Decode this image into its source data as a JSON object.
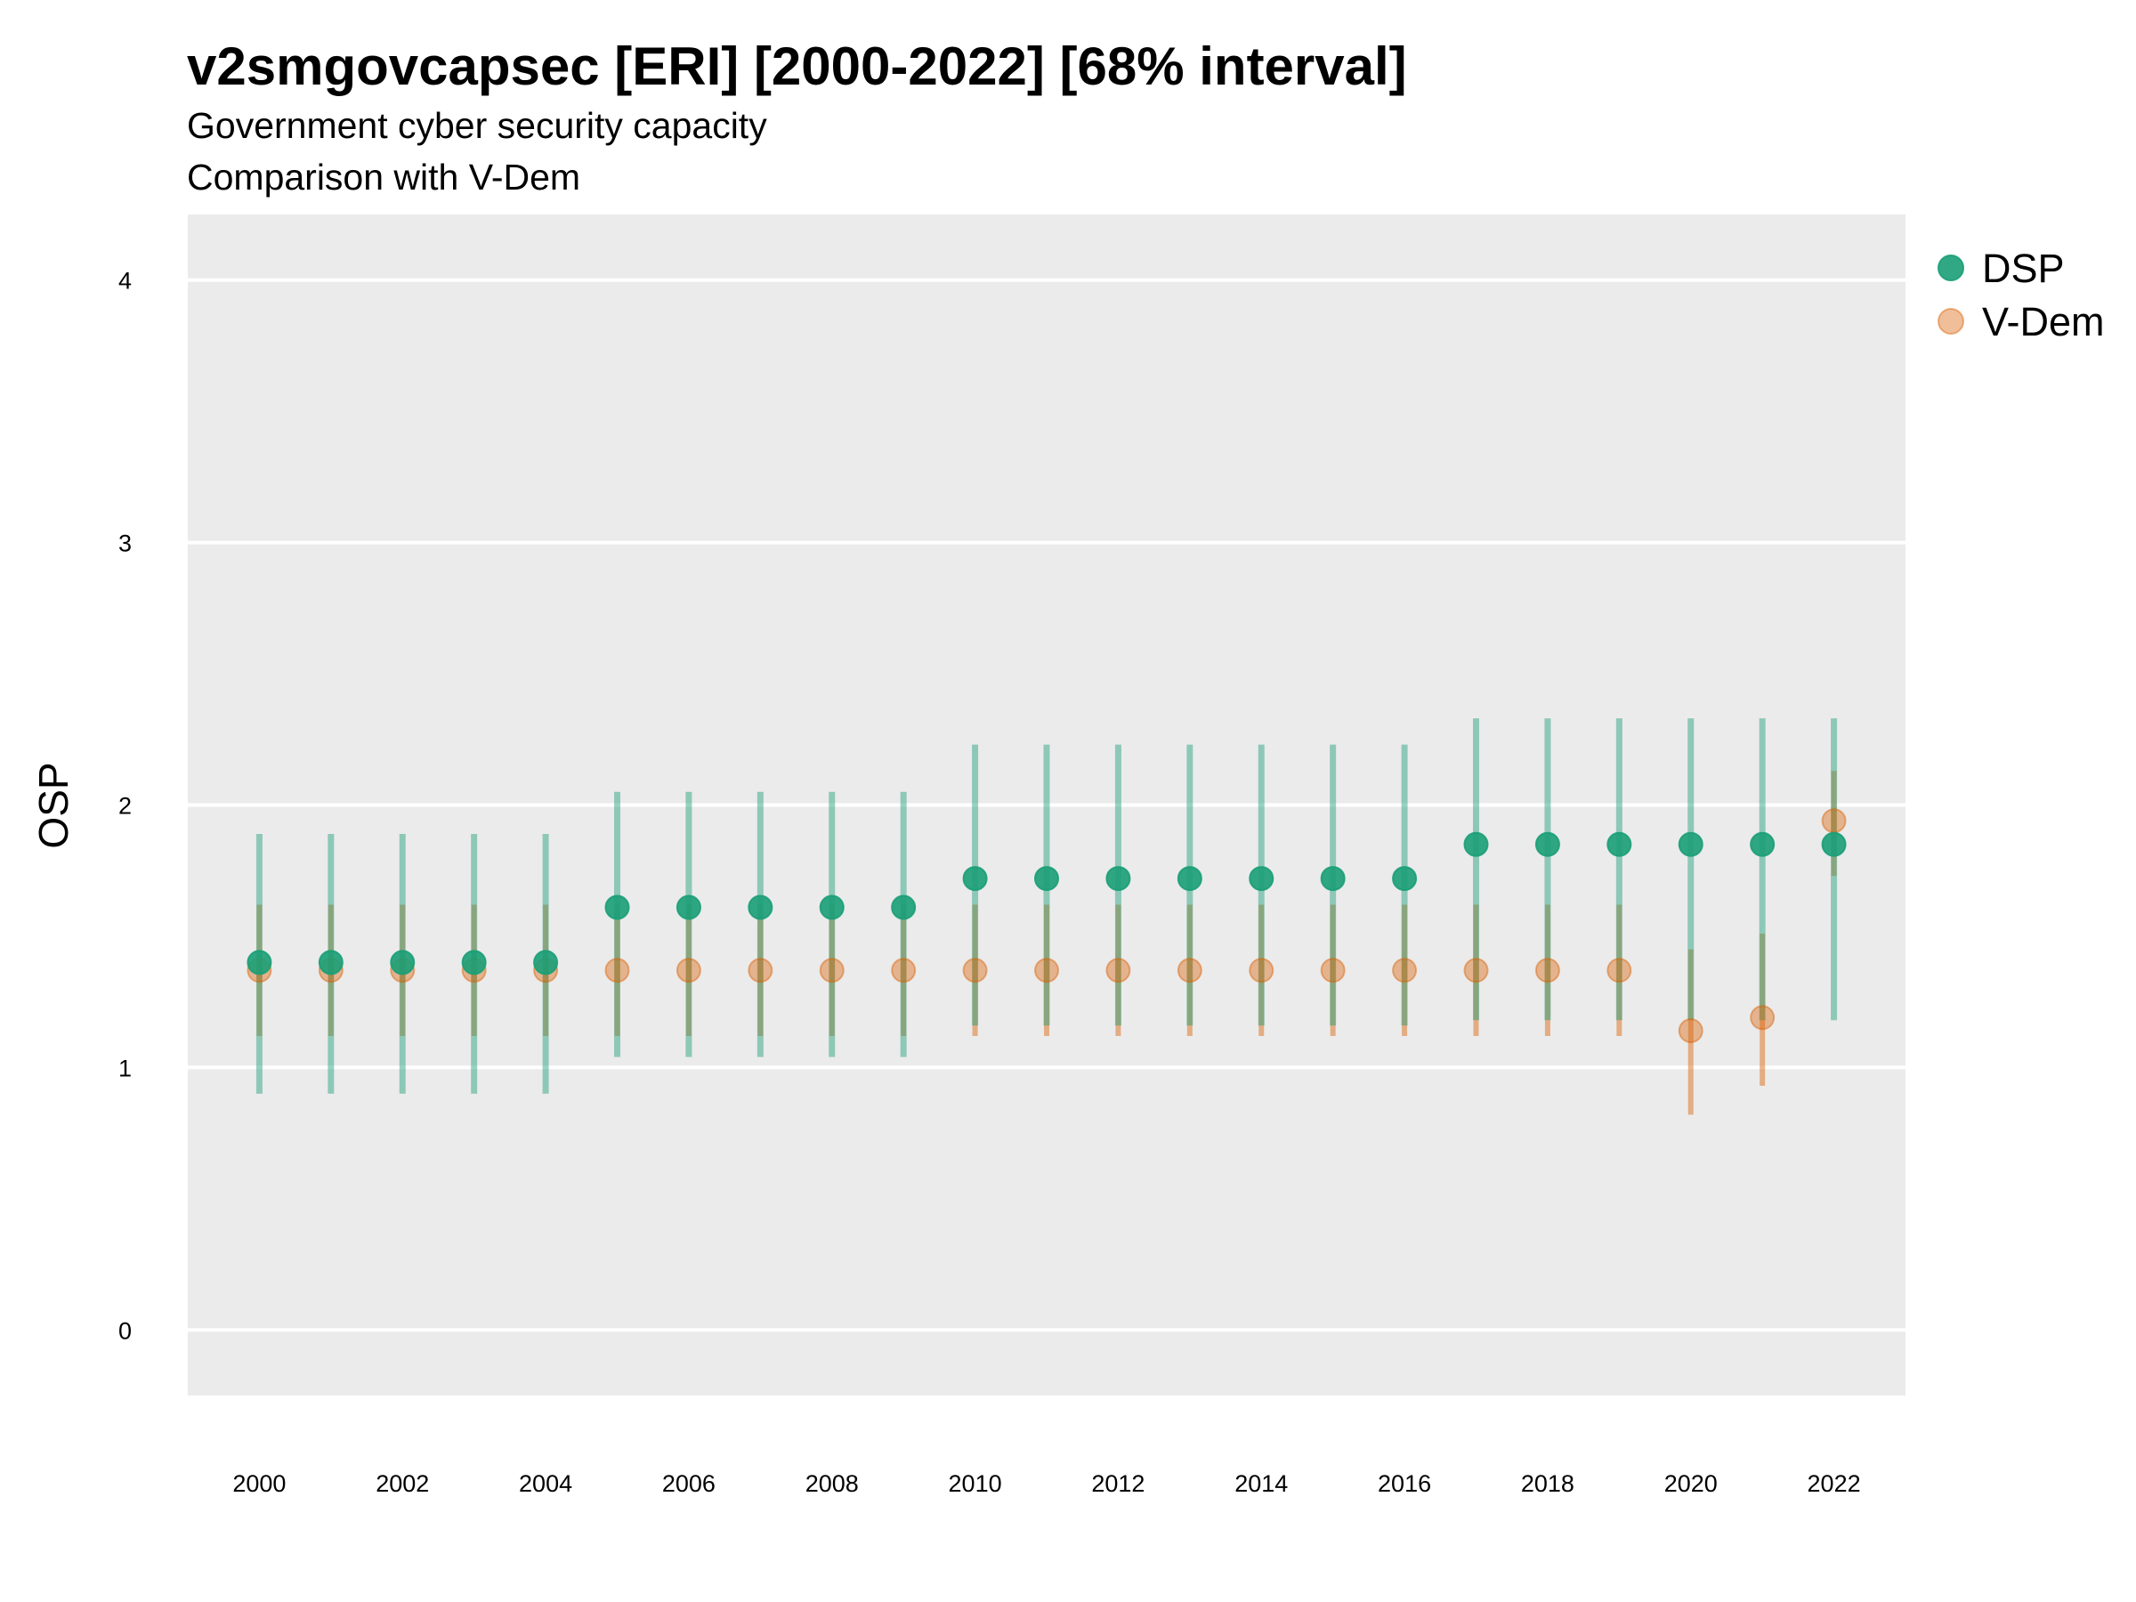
{
  "chart_data": {
    "type": "scatter",
    "title": "v2smgovcapsec [ERI] [2000-2022] [68% interval]",
    "subtitle": [
      "Government cyber security capacity",
      "Comparison with V-Dem"
    ],
    "xlabel": "",
    "ylabel": "OSP",
    "xlim": [
      1999,
      2023
    ],
    "ylim": [
      -0.25,
      4.25
    ],
    "x_ticks": [
      2000,
      2002,
      2004,
      2006,
      2008,
      2010,
      2012,
      2014,
      2016,
      2018,
      2020,
      2022
    ],
    "y_ticks": [
      0,
      1,
      2,
      3,
      4
    ],
    "grid": true,
    "legend_position": "right",
    "x": [
      2000,
      2001,
      2002,
      2003,
      2004,
      2005,
      2006,
      2007,
      2008,
      2009,
      2010,
      2011,
      2012,
      2013,
      2014,
      2015,
      2016,
      2017,
      2018,
      2019,
      2020,
      2021,
      2022
    ],
    "series": [
      {
        "name": "DSP",
        "color": "#1b9e77",
        "values": [
          1.4,
          1.4,
          1.4,
          1.4,
          1.4,
          1.61,
          1.61,
          1.61,
          1.61,
          1.61,
          1.72,
          1.72,
          1.72,
          1.72,
          1.72,
          1.72,
          1.72,
          1.85,
          1.85,
          1.85,
          1.85,
          1.85,
          1.85
        ],
        "lower": [
          0.9,
          0.9,
          0.9,
          0.9,
          0.9,
          1.04,
          1.04,
          1.04,
          1.04,
          1.04,
          1.16,
          1.16,
          1.16,
          1.16,
          1.16,
          1.16,
          1.16,
          1.18,
          1.18,
          1.18,
          1.18,
          1.18,
          1.18
        ],
        "upper": [
          1.89,
          1.89,
          1.89,
          1.89,
          1.89,
          2.05,
          2.05,
          2.05,
          2.05,
          2.05,
          2.23,
          2.23,
          2.23,
          2.23,
          2.23,
          2.23,
          2.23,
          2.33,
          2.33,
          2.33,
          2.33,
          2.33,
          2.33
        ]
      },
      {
        "name": "V-Dem",
        "color": "#d95f02",
        "values": [
          1.37,
          1.37,
          1.37,
          1.37,
          1.37,
          1.37,
          1.37,
          1.37,
          1.37,
          1.37,
          1.37,
          1.37,
          1.37,
          1.37,
          1.37,
          1.37,
          1.37,
          1.37,
          1.37,
          1.37,
          1.14,
          1.19,
          1.94
        ],
        "lower": [
          1.12,
          1.12,
          1.12,
          1.12,
          1.12,
          1.12,
          1.12,
          1.12,
          1.12,
          1.12,
          1.12,
          1.12,
          1.12,
          1.12,
          1.12,
          1.12,
          1.12,
          1.12,
          1.12,
          1.12,
          0.82,
          0.93,
          1.73
        ],
        "upper": [
          1.62,
          1.62,
          1.62,
          1.62,
          1.62,
          1.62,
          1.62,
          1.62,
          1.62,
          1.62,
          1.62,
          1.62,
          1.62,
          1.62,
          1.62,
          1.62,
          1.62,
          1.62,
          1.62,
          1.62,
          1.45,
          1.51,
          2.13
        ]
      }
    ]
  }
}
